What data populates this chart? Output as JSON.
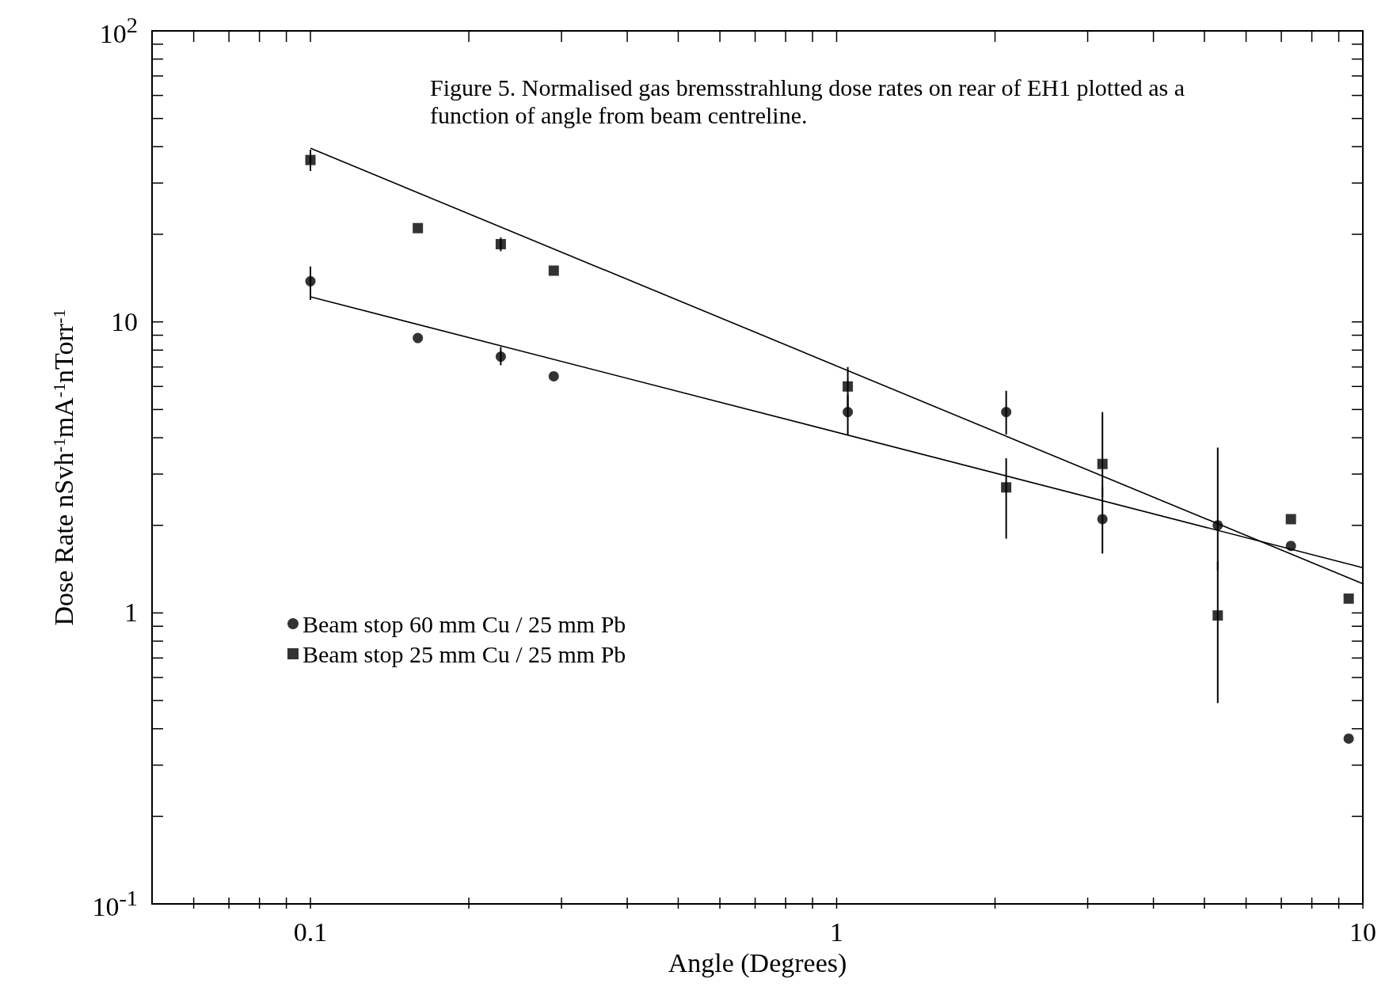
{
  "chart_data": {
    "type": "scatter",
    "xlabel": "Angle (Degrees)",
    "ylabel": "Dose Rate nSvh$^{-1}$mA$^{-1}$nTorr$^{-1}$",
    "annotations": [
      "Figure 5. Normalised gas bremsstrahlung dose rates on rear of EH1 plotted as a function of angle from beam centreline."
    ],
    "log": "xy",
    "grid": false,
    "legend": "left",
    "xlim": [
      0.05,
      10
    ],
    "ylim": [
      0.1,
      100
    ],
    "xticks": [
      {
        "value": 0.06,
        "label": null
      },
      {
        "value": 0.07,
        "label": null
      },
      {
        "value": 0.08,
        "label": null
      },
      {
        "value": 0.09,
        "label": null
      },
      0.1,
      {
        "value": 0.2,
        "label": null
      },
      {
        "value": 0.3,
        "label": null
      },
      {
        "value": 0.4,
        "label": null
      },
      {
        "value": 0.5,
        "label": null
      },
      {
        "value": 0.6,
        "label": null
      },
      {
        "value": 0.7,
        "label": null
      },
      {
        "value": 0.8,
        "label": null
      },
      {
        "value": 0.9,
        "label": null
      },
      1,
      {
        "value": 2,
        "label": null
      },
      {
        "value": 3,
        "label": null
      },
      {
        "value": 4,
        "label": null
      },
      {
        "value": 5,
        "label": null
      },
      {
        "value": 6,
        "label": null
      },
      {
        "value": 7,
        "label": null
      },
      {
        "value": 8,
        "label": null
      },
      {
        "value": 9,
        "label": null
      },
      10
    ],
    "yticks": [
      {
        "value": 0.1,
        "label": "10$^{-1}$"
      },
      {
        "value": 0.2,
        "label": null
      },
      {
        "value": 0.3,
        "label": null
      },
      {
        "value": 0.4,
        "label": null
      },
      {
        "value": 0.5,
        "label": null
      },
      {
        "value": 0.6,
        "label": null
      },
      {
        "value": 0.7,
        "label": null
      },
      {
        "value": 0.8,
        "label": null
      },
      {
        "value": 0.9,
        "label": null
      },
      1,
      {
        "value": 2,
        "label": null
      },
      {
        "value": 3,
        "label": null
      },
      {
        "value": 4,
        "label": null
      },
      {
        "value": 5,
        "label": null
      },
      {
        "value": 6,
        "label": null
      },
      {
        "value": 7,
        "label": null
      },
      {
        "value": 8,
        "label": null
      },
      {
        "value": 9,
        "label": null
      },
      10,
      {
        "value": 20,
        "label": null
      },
      {
        "value": 30,
        "label": null
      },
      {
        "value": 40,
        "label": null
      },
      {
        "value": 50,
        "label": null
      },
      {
        "value": 60,
        "label": null
      },
      {
        "value": 70,
        "label": null
      },
      {
        "value": 80,
        "label": null
      },
      {
        "value": 90,
        "label": null
      },
      {
        "value": 100,
        "label": "10$^{2}$"
      }
    ],
    "series": [
      {
        "name": "Beam stop 60 mm Cu / 25 mm Pb",
        "type": "scatter",
        "marker": "circle",
        "color": "#000000",
        "x": [
          0.1,
          0.16,
          0.23,
          0.29,
          1.05,
          2.1,
          3.2,
          5.3,
          7.3,
          9.4
        ],
        "values": [
          13.8,
          8.8,
          7.6,
          6.5,
          4.9,
          4.9,
          2.1,
          2.0,
          1.7,
          0.37
        ],
        "errors": [
          [
            11.9,
            15.5
          ],
          null,
          [
            7.1,
            8.2
          ],
          null,
          [
            4.1,
            5.6
          ],
          [
            4.1,
            5.8
          ],
          [
            1.6,
            2.7
          ],
          [
            1.4,
            3.7
          ],
          null,
          null
        ]
      },
      {
        "name": "Beam stop 25 mm Cu / 25 mm Pb",
        "type": "scatter",
        "marker": "square",
        "color": "#000000",
        "x": [
          0.1,
          0.16,
          0.23,
          0.29,
          1.05,
          2.1,
          3.2,
          5.3,
          7.3,
          9.4
        ],
        "values": [
          36,
          21,
          18.5,
          15,
          6.0,
          2.7,
          3.25,
          0.98,
          2.1,
          1.12
        ],
        "errors": [
          [
            33,
            39
          ],
          null,
          [
            17.5,
            19.5
          ],
          null,
          [
            5.0,
            7.0
          ],
          [
            1.8,
            3.4
          ],
          [
            2.5,
            4.9
          ],
          [
            0.49,
            1.5
          ],
          null,
          null
        ]
      },
      {
        "type": "line",
        "color": "#000000",
        "marker": "none",
        "x": [
          0.1,
          10
        ],
        "values": [
          12.2,
          1.43
        ]
      },
      {
        "type": "line",
        "color": "#000000",
        "marker": "none",
        "x": [
          0.1,
          10
        ],
        "values": [
          39.5,
          1.26
        ]
      }
    ]
  }
}
